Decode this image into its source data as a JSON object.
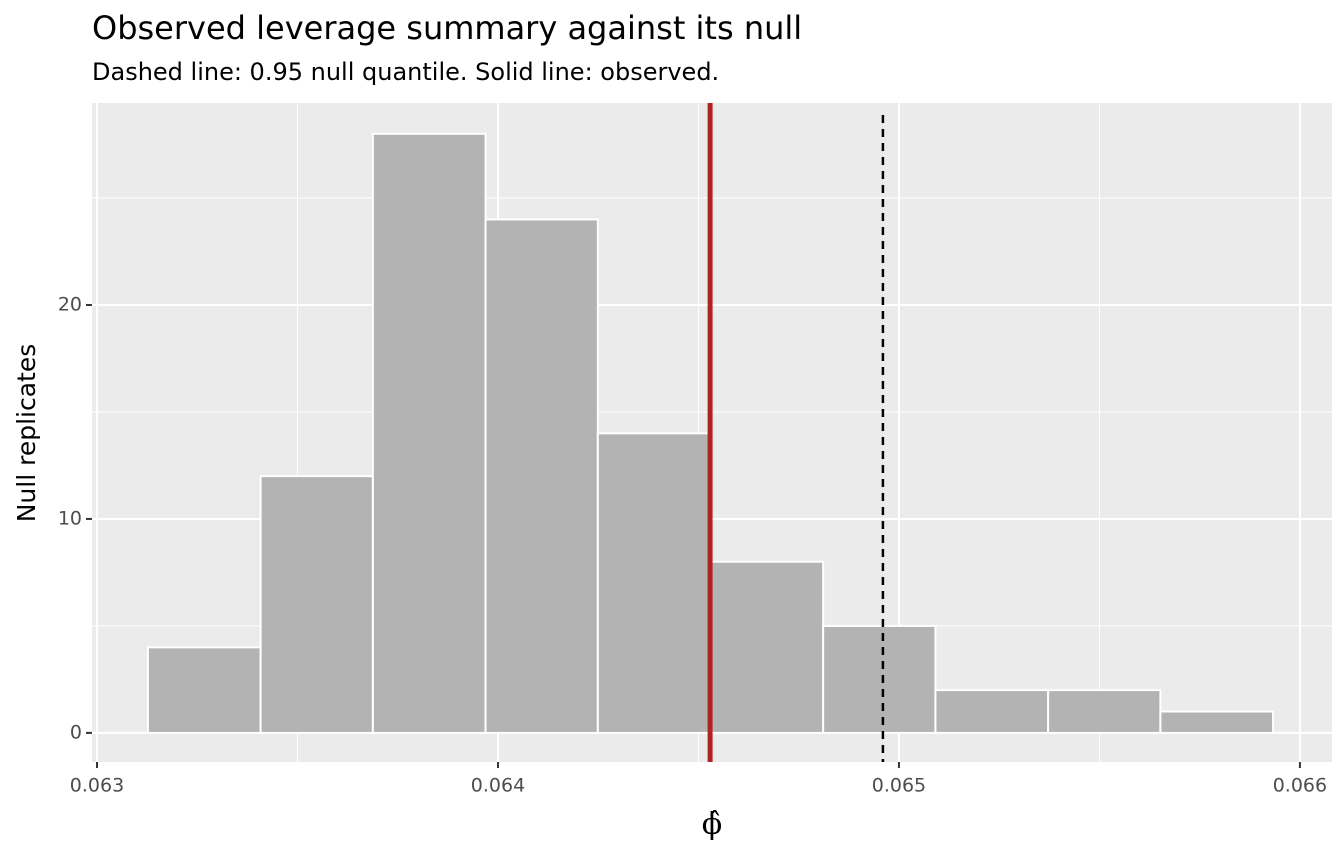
{
  "chart_data": {
    "type": "histogram",
    "title": "Observed leverage summary against its null",
    "subtitle": "Dashed line: 0.95 null quantile. Solid line: observed.",
    "x_label": "ϕ̂",
    "y_label": "Null replicates",
    "bins": [
      0.063127,
      0.063408,
      0.063688,
      0.063969,
      0.064249,
      0.06453,
      0.064811,
      0.065091,
      0.065372,
      0.065652,
      0.065933
    ],
    "values": [
      4,
      12,
      28,
      24,
      14,
      8,
      5,
      2,
      2,
      1
    ],
    "color": "#b3b3b3",
    "observed": 0.064529,
    "observed_color": "#b22222",
    "null_quantile": 0.06496,
    "null_quantile_color": "#000000",
    "xlim": [
      0.0629875,
      0.06608
    ],
    "ylim": [
      -1.36,
      29.44
    ],
    "xticks": [
      0.063,
      0.064,
      0.065,
      0.066
    ],
    "yticks": [
      0,
      10,
      20
    ],
    "grid": true
  }
}
